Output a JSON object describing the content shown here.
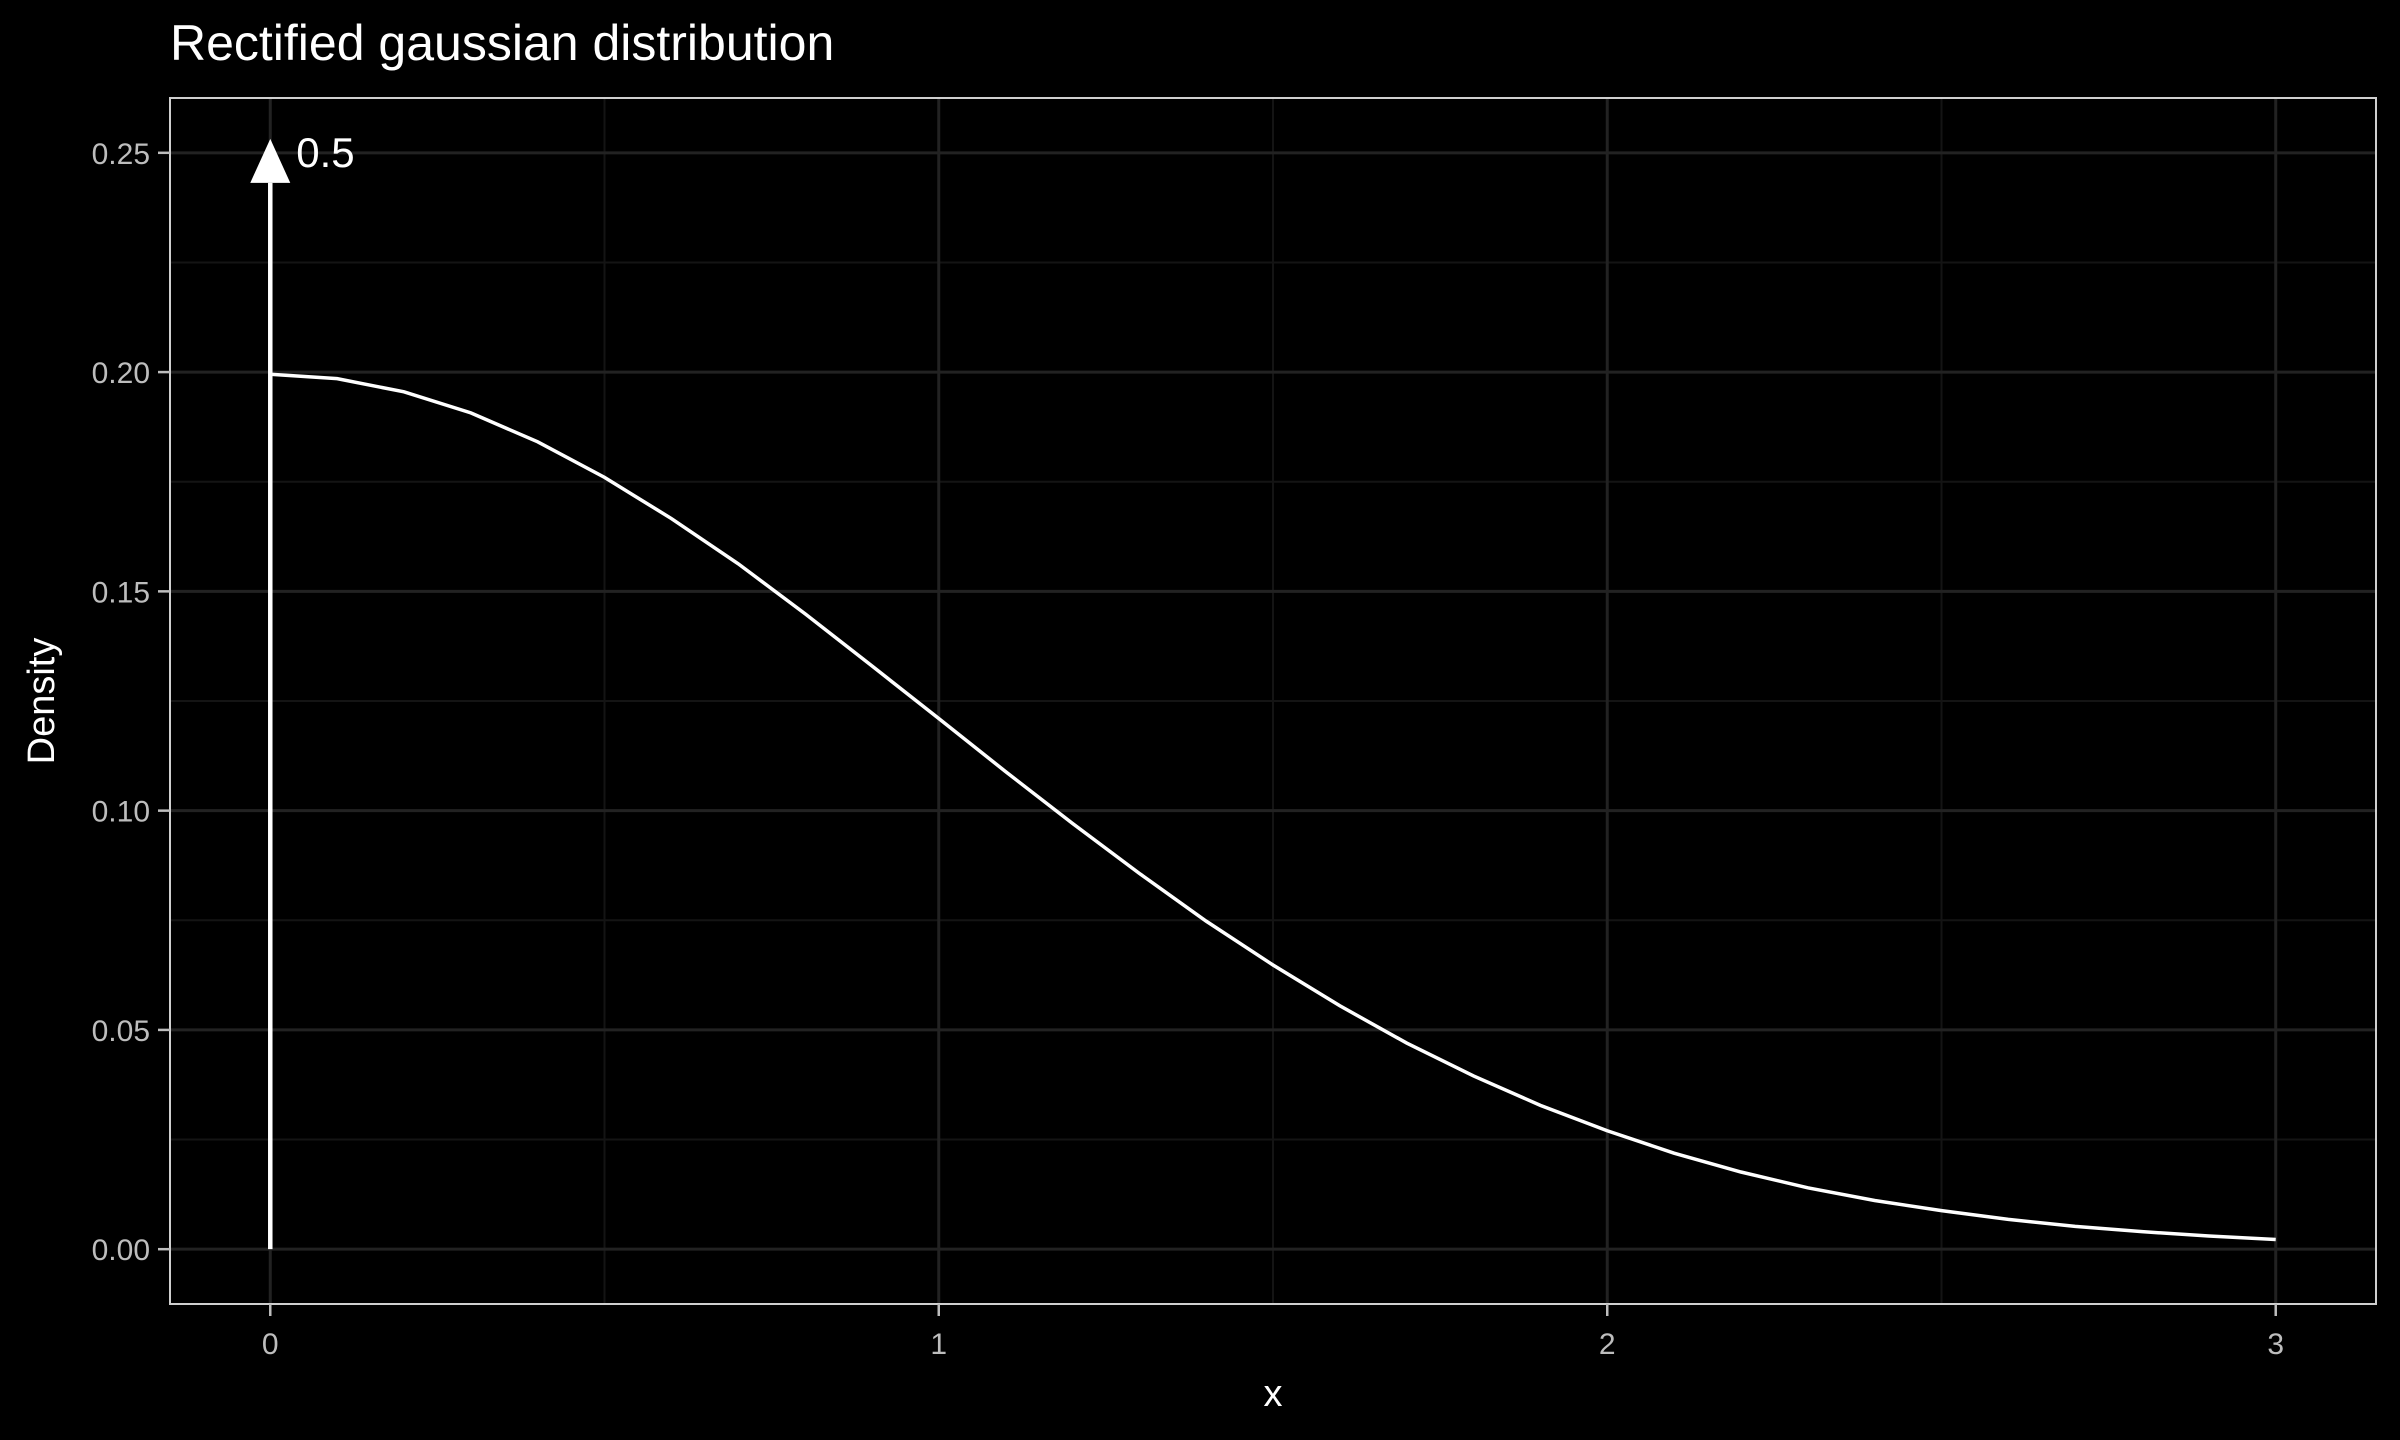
{
  "chart_data": {
    "type": "line",
    "title": "Rectified gaussian distribution",
    "xlabel": "x",
    "ylabel": "Density",
    "xlim": [
      -0.15,
      3.15
    ],
    "ylim": [
      -0.0125,
      0.2625
    ],
    "x_ticks": [
      0,
      1,
      2,
      3
    ],
    "x_tick_labels": [
      "0",
      "1",
      "2",
      "3"
    ],
    "y_ticks": [
      0.0,
      0.05,
      0.1,
      0.15,
      0.2,
      0.25
    ],
    "y_tick_labels": [
      "0.00",
      "0.05",
      "0.10",
      "0.15",
      "0.20",
      "0.25"
    ],
    "grid": true,
    "series": [
      {
        "x": [
          0,
          0.1,
          0.2,
          0.3,
          0.4,
          0.5,
          0.6,
          0.7,
          0.8,
          0.9,
          1.0,
          1.1,
          1.2,
          1.3,
          1.4,
          1.5,
          1.6,
          1.7,
          1.8,
          1.9,
          2.0,
          2.1,
          2.2,
          2.3,
          2.4,
          2.5,
          2.6,
          2.7,
          2.8,
          2.9,
          3.0
        ],
        "y": [
          0.1995,
          0.1985,
          0.1955,
          0.1907,
          0.1841,
          0.176,
          0.1666,
          0.1563,
          0.1449,
          0.133,
          0.121,
          0.1089,
          0.0971,
          0.0857,
          0.0748,
          0.0648,
          0.0555,
          0.047,
          0.0395,
          0.0328,
          0.027,
          0.0219,
          0.0176,
          0.014,
          0.0111,
          0.0088,
          0.0068,
          0.0052,
          0.004,
          0.003,
          0.0022
        ]
      }
    ],
    "point_mass": {
      "x": 0,
      "label": "0.5",
      "arrow_top": 0.25
    },
    "colors": {
      "background": "#000000",
      "line": "#ffffff",
      "grid_major": "#222222",
      "grid_minor": "#141414",
      "panel_border": "#cfcfcf",
      "tick_text": "#bdbdbd"
    }
  }
}
